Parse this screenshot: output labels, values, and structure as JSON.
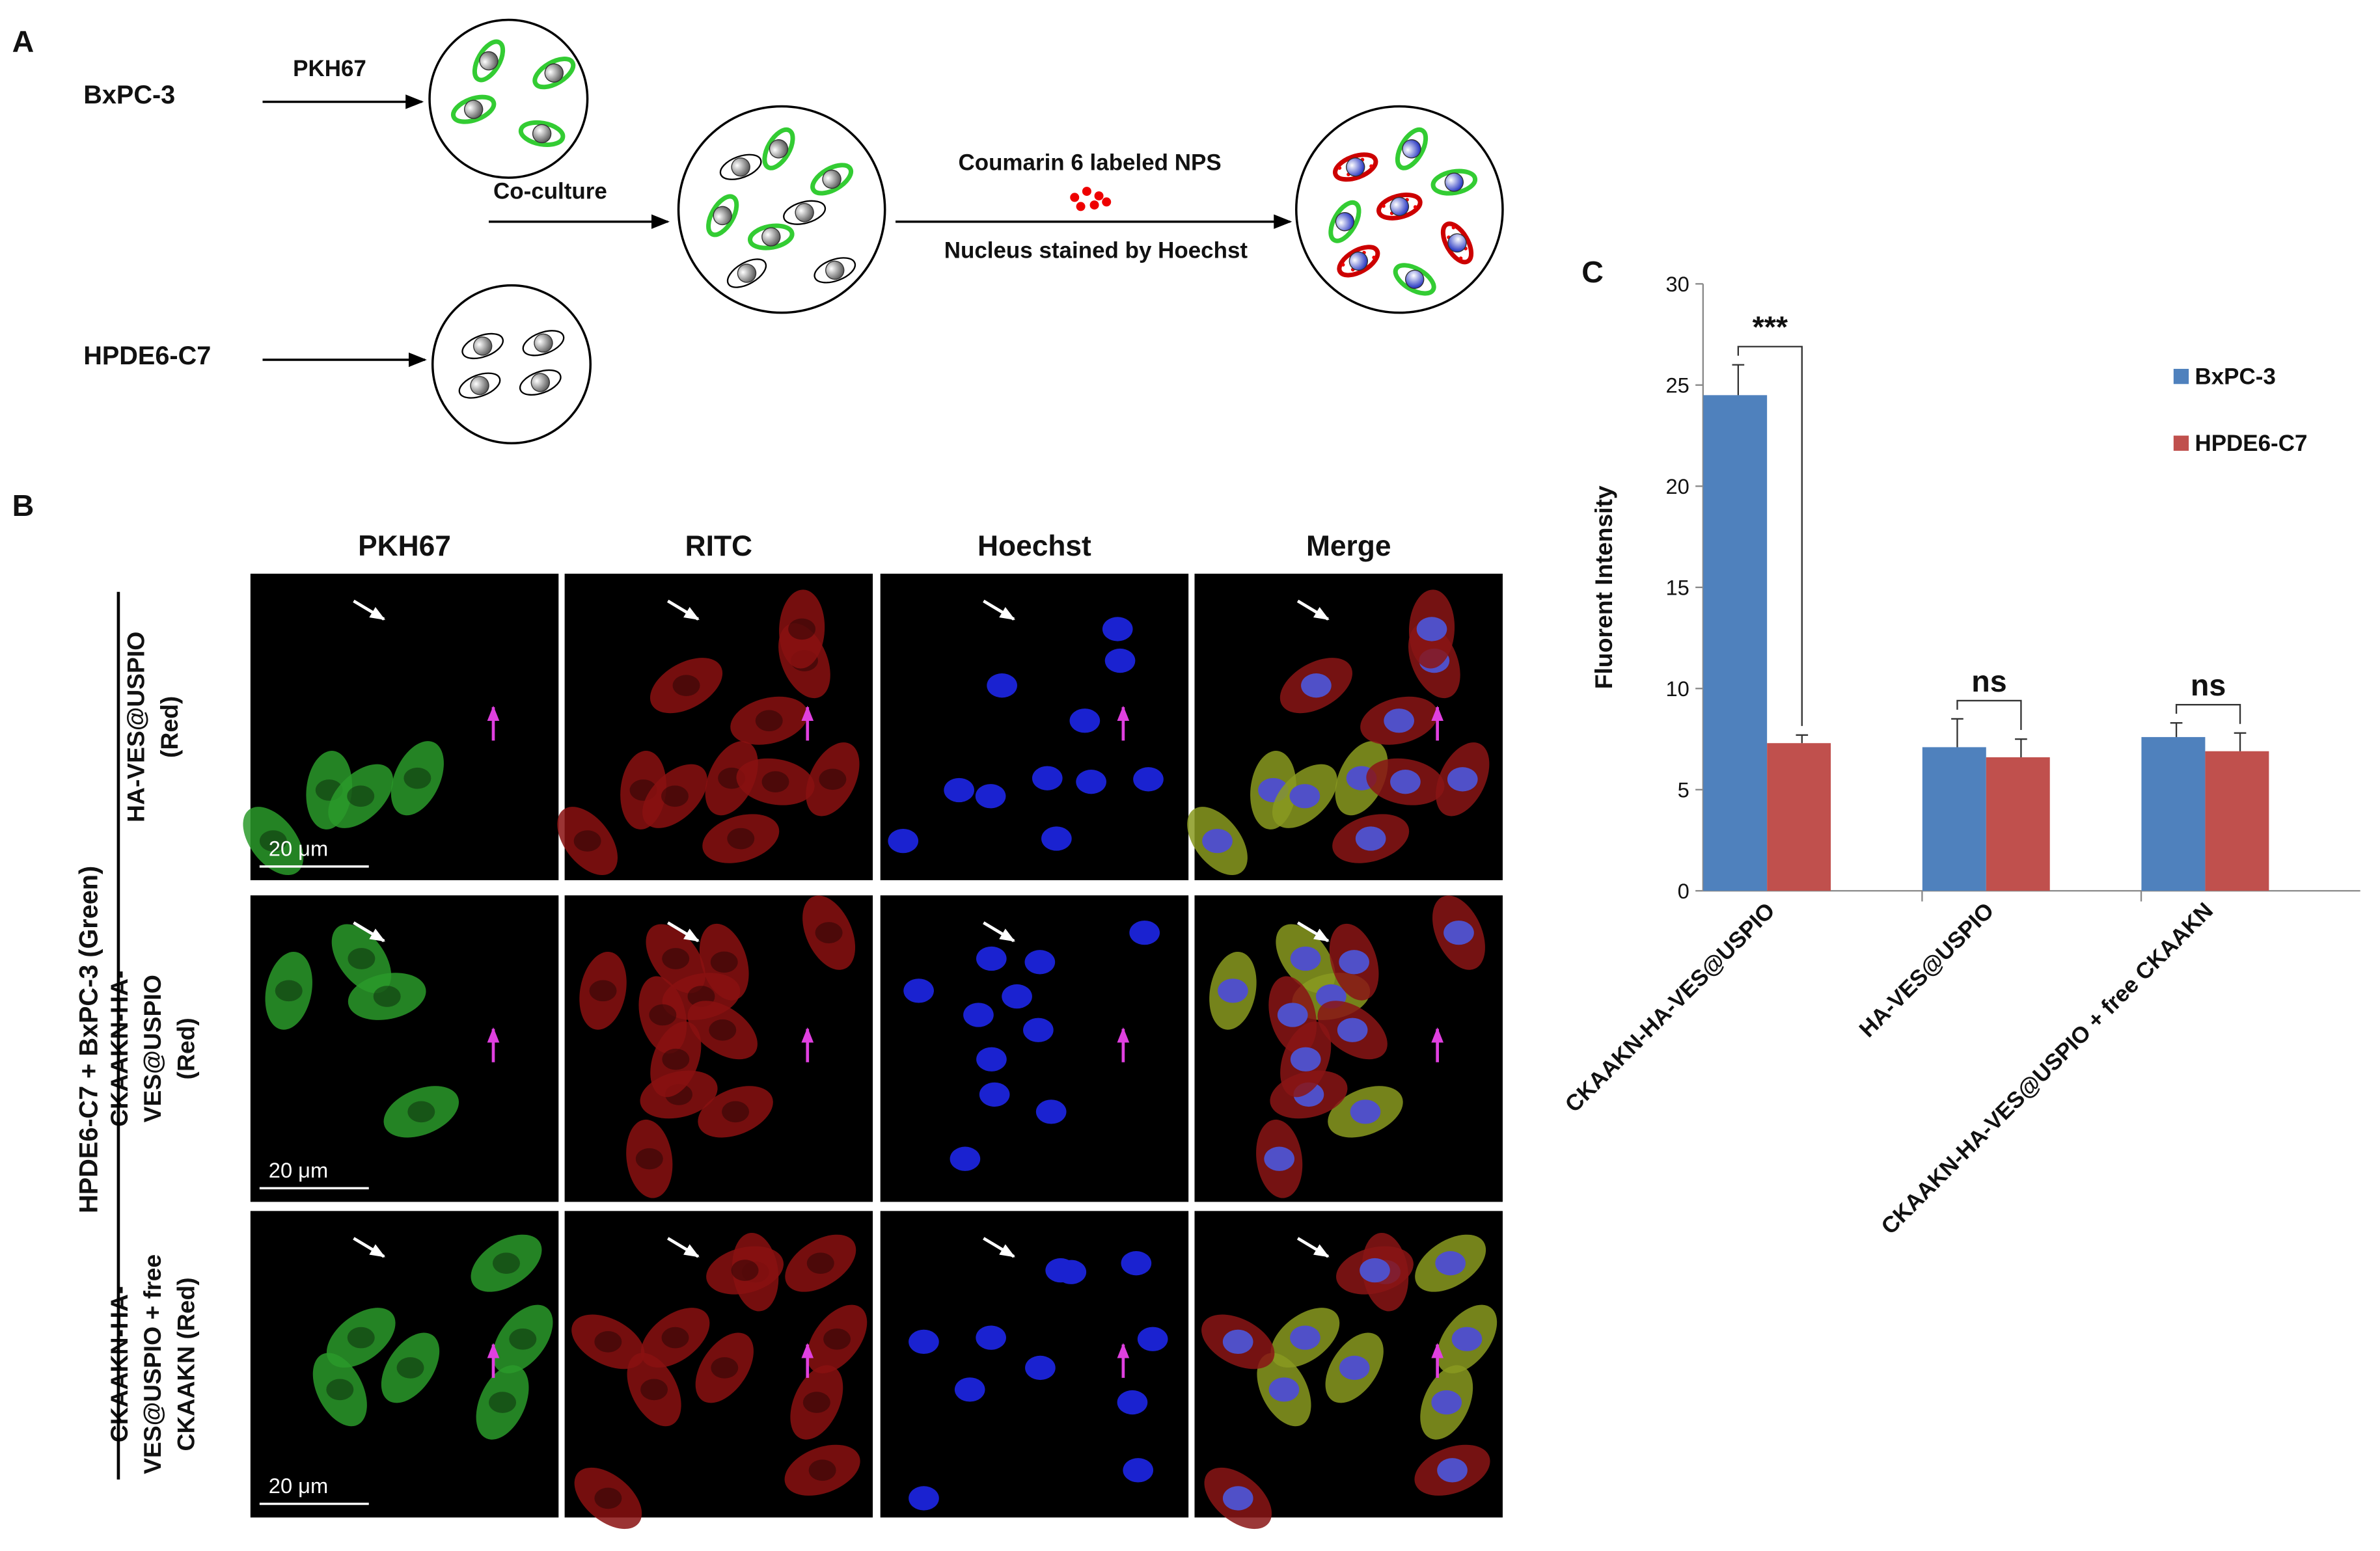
{
  "panel_labels": [
    "A",
    "B",
    "C"
  ],
  "schematic": {
    "cell_lines": [
      "BxPC-3",
      "HPDE6-C7"
    ],
    "steps": [
      "PKH67",
      "Co-culture",
      "Coumarin 6  labeled NPS",
      "Nucleus stained by Hoechst"
    ]
  },
  "microscopy": {
    "channels": [
      "PKH67",
      "RITC",
      "Hoechst",
      "Merge"
    ],
    "group_label": "HPDE6-C7 + BxPC-3 (Green)",
    "rows": [
      [
        "HA-VES@USPIO",
        "(Red)"
      ],
      [
        "CKAAKN-HA-",
        "VES@USPIO",
        "(Red)"
      ],
      [
        "CKAAKN-HA-",
        "VES@USPIO + free",
        "CKAAKN (Red)"
      ]
    ],
    "scale_bar": "20 μm"
  },
  "chart_data": {
    "type": "bar",
    "y_label": "Fluorent Intensity",
    "categories": [
      "CKAAKN-HA-VES@USPIO",
      "HA-VES@USPIO",
      "CKAAKN-HA-VES@USPIO + free CKAAKN"
    ],
    "series": [
      {
        "name": "BxPC-3",
        "color": "#4f81bd",
        "values": [
          24.5,
          7.1,
          7.6
        ],
        "errors": [
          1.5,
          1.4,
          0.7
        ]
      },
      {
        "name": "HPDE6-C7",
        "color": "#c0504d",
        "values": [
          7.3,
          6.6,
          6.9
        ],
        "errors": [
          0.4,
          0.9,
          0.9
        ]
      }
    ],
    "significance": [
      "***",
      "ns",
      "ns"
    ],
    "ylim": [
      0,
      30
    ],
    "yticks": [
      0,
      5,
      10,
      15,
      20,
      25,
      30
    ],
    "legend": "upper right"
  }
}
